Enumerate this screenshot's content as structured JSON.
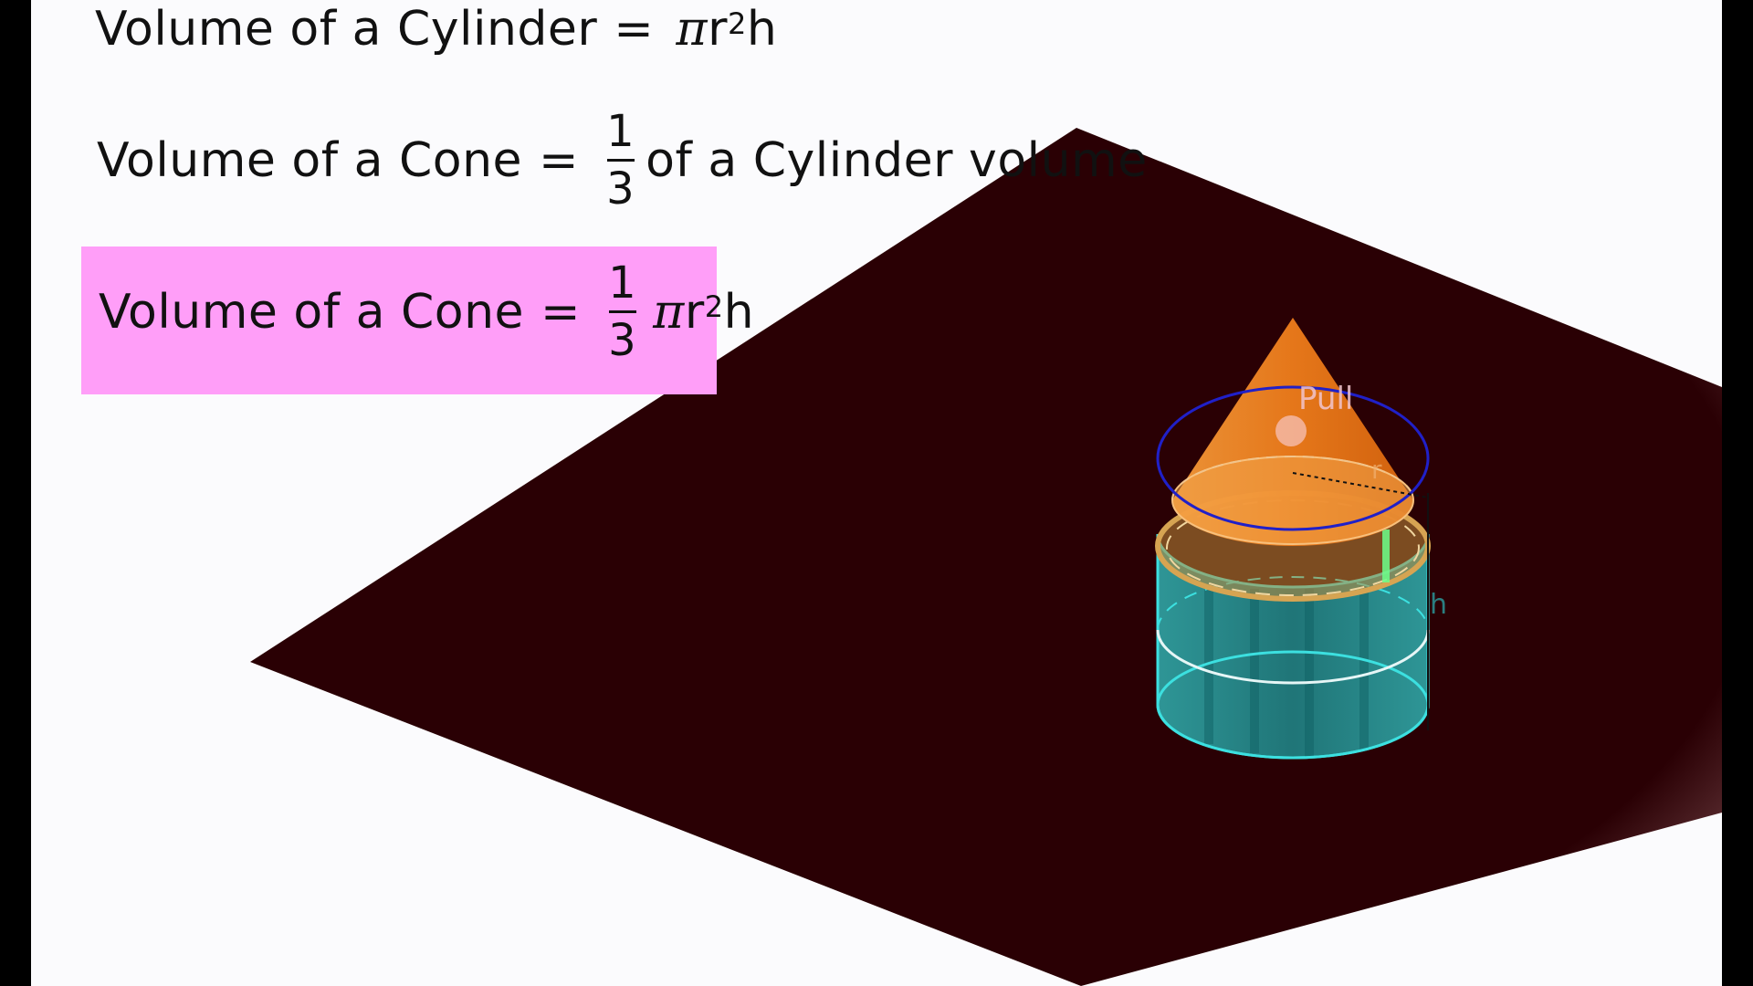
{
  "formulas": {
    "cylinder": {
      "lhs": "Volume of a Cylinder",
      "eq": "=",
      "pi": "π",
      "r": "r",
      "exp": "2",
      "h": "h"
    },
    "cone_fraction": {
      "lhs": "Volume of a Cone",
      "eq": "=",
      "num": "1",
      "den": "3",
      "rhs": "of a Cylinder volume"
    },
    "cone_formula": {
      "lhs": "Volume of a Cone",
      "eq": "=",
      "num": "1",
      "den": "3",
      "pi": "π",
      "r": "r",
      "exp": "2",
      "h": "h"
    }
  },
  "scene": {
    "pull_label": "Pull",
    "r_label": "r",
    "h_label": "h"
  },
  "colors": {
    "highlight": "#ff9ef8",
    "plane": "#2a0004",
    "cone": "#f07a1a",
    "cylinder_fill": "#2aa7a7",
    "cylinder_edge": "#3ce0e0",
    "top_circle": "#2020c8",
    "pull_point": "#f4b9a6",
    "indicator": "#6cff8a"
  }
}
